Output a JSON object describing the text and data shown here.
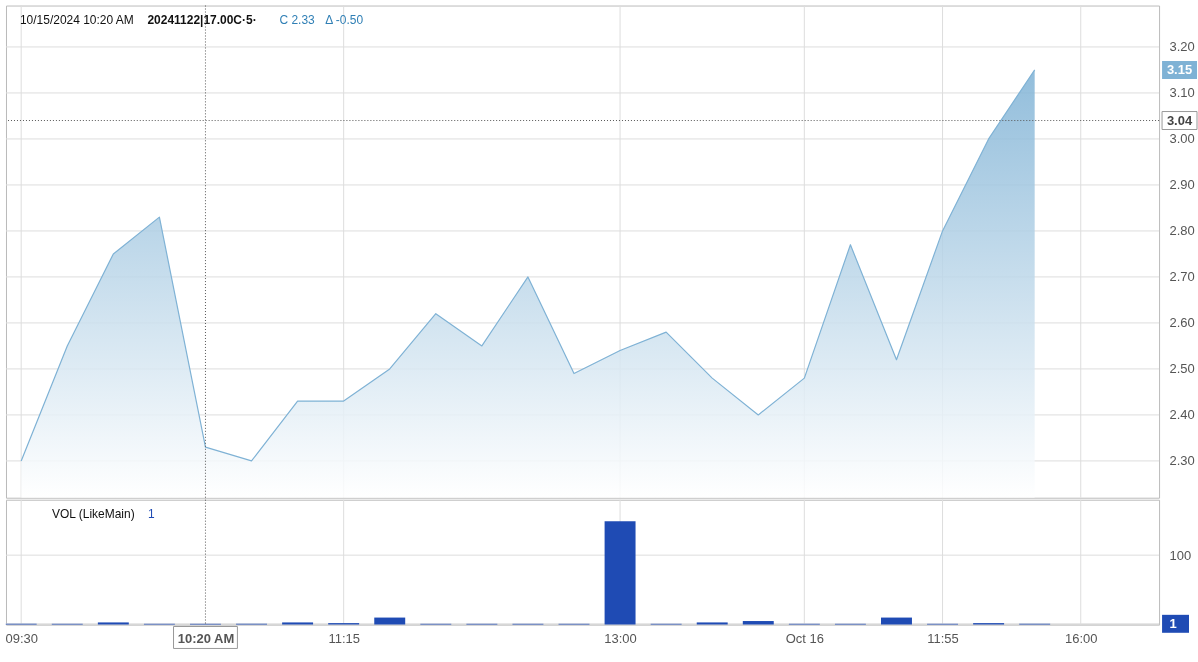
{
  "chart_data": [
    {
      "type": "area",
      "title": "10/15/2024 10:20 AM",
      "subtitle": "20241122|17.00C·5·",
      "annotations": [
        "C 2.33",
        "Δ -0.50",
        "3.15"
      ],
      "categories": [
        "09:30",
        null,
        null,
        null,
        "10:20 AM",
        null,
        null,
        "11:15",
        null,
        null,
        null,
        null,
        null,
        "13:00",
        null,
        null,
        null,
        "Oct 16",
        null,
        null,
        "11:55",
        null,
        null,
        "16:00"
      ],
      "series": [
        {
          "color": "#7fb2d5",
          "values": [
            2.3,
            2.55,
            2.75,
            2.83,
            2.33,
            2.3,
            2.43,
            2.43,
            2.5,
            2.62,
            2.55,
            2.7,
            2.49,
            2.54,
            2.58,
            2.48,
            2.4,
            2.48,
            2.77,
            2.52,
            2.8,
            3.0,
            3.15,
            null
          ]
        }
      ],
      "ylim": [
        2.22,
        3.29
      ],
      "yticks": [
        {
          "value": 2.3,
          "label": "2.30"
        },
        {
          "value": 2.4,
          "label": "2.40"
        },
        {
          "value": 2.5,
          "label": "2.50"
        },
        {
          "value": 2.6,
          "label": "2.60"
        },
        {
          "value": 2.7,
          "label": "2.70"
        },
        {
          "value": 2.8,
          "label": "2.80"
        },
        {
          "value": 2.9,
          "label": "2.90"
        },
        {
          "value": 3.0,
          "label": "3.00"
        },
        {
          "value": 3.1,
          "label": "3.10"
        },
        {
          "value": 3.2,
          "label": "3.20"
        }
      ],
      "grid": true,
      "tick_labels": "y",
      "ref_lines": [
        {
          "axis": "y",
          "value": 3.04,
          "label": "3.04",
          "line_style": "dotted",
          "color": "#555555"
        },
        {
          "axis": "x",
          "value": "10:20 AM",
          "line_style": "dotted",
          "color": "#555555"
        }
      ]
    },
    {
      "type": "bar",
      "title": "VOL (LikeMain)",
      "annotations": [
        "1"
      ],
      "categories": [
        "09:30",
        null,
        null,
        null,
        "10:20 AM",
        null,
        null,
        "11:15",
        null,
        null,
        null,
        null,
        null,
        "13:00",
        null,
        null,
        null,
        "Oct 16",
        null,
        null,
        "11:55",
        null,
        null,
        "16:00"
      ],
      "series": [
        {
          "color": "#1f4bb4",
          "values": [
            1,
            1,
            3,
            1,
            1,
            1,
            3,
            2,
            10,
            1,
            1,
            1,
            1,
            149,
            1,
            3,
            5,
            1,
            1,
            10,
            1,
            2,
            1,
            null
          ]
        }
      ],
      "ylim": [
        0,
        180
      ],
      "yticks": [
        1,
        100
      ],
      "grid": true,
      "ref_lines": [
        {
          "axis": "x",
          "value": "10:20 AM",
          "line_style": "dotted",
          "color": "#555555"
        }
      ]
    }
  ]
}
